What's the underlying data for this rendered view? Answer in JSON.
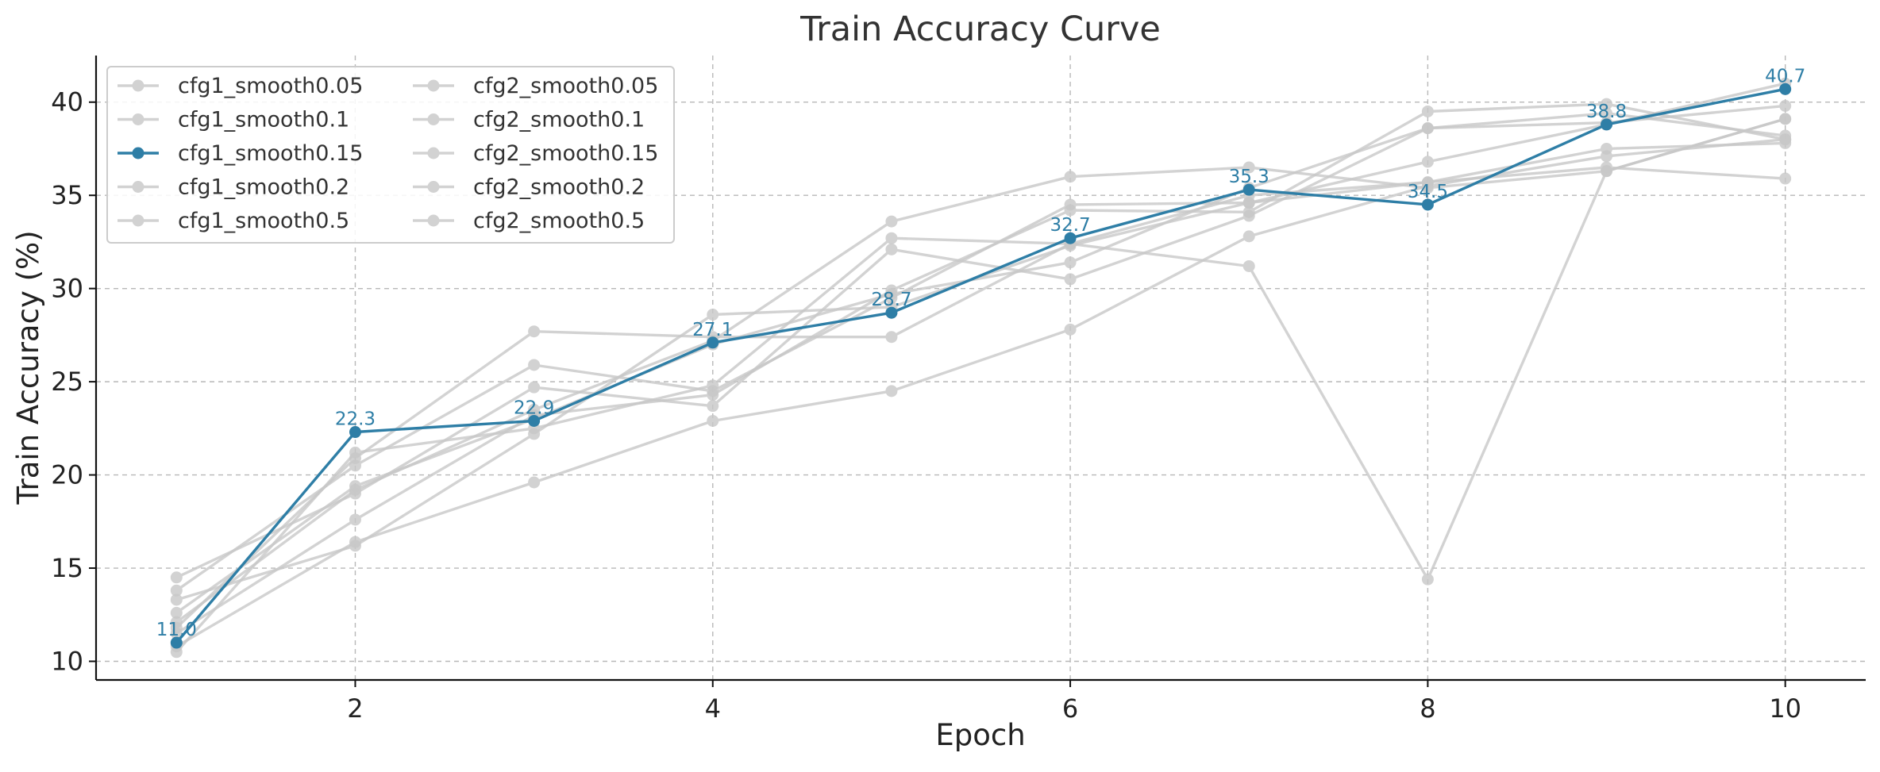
{
  "chart_data": {
    "type": "line",
    "title": "Train Accuracy Curve",
    "xlabel": "Epoch",
    "ylabel": "Train Accuracy (%)",
    "x": [
      1,
      2,
      3,
      4,
      5,
      6,
      7,
      8,
      9,
      10
    ],
    "xlim": [
      0.55,
      10.45
    ],
    "ylim": [
      9.0,
      42.5
    ],
    "xticks": [
      2,
      4,
      6,
      8,
      10
    ],
    "yticks": [
      10,
      15,
      20,
      25,
      30,
      35,
      40
    ],
    "grid": true,
    "legend_position": "top-left",
    "legend_columns": 2,
    "highlight_color": "#2e7ea6",
    "muted_color": "#c8c8c8",
    "series": [
      {
        "name": "cfg1_smooth0.05",
        "values": [
          14.5,
          19.0,
          24.7,
          23.7,
          32.1,
          30.5,
          33.9,
          38.6,
          39.4,
          38.2
        ],
        "highlight": false
      },
      {
        "name": "cfg1_smooth0.1",
        "values": [
          13.3,
          16.2,
          22.2,
          28.6,
          29.0,
          32.3,
          34.6,
          36.8,
          38.8,
          41.0
        ],
        "highlight": false
      },
      {
        "name": "cfg1_smooth0.15",
        "values": [
          11.0,
          22.3,
          22.9,
          27.1,
          28.7,
          32.7,
          35.3,
          34.5,
          38.8,
          40.7
        ],
        "highlight": true
      },
      {
        "name": "cfg1_smooth0.2",
        "values": [
          12.1,
          19.2,
          23.5,
          27.2,
          33.6,
          36.0,
          36.5,
          35.4,
          36.3,
          39.1
        ],
        "highlight": false
      },
      {
        "name": "cfg1_smooth0.5",
        "values": [
          11.5,
          17.6,
          23.2,
          24.3,
          29.9,
          34.2,
          34.1,
          39.5,
          39.9,
          38.0
        ],
        "highlight": false
      },
      {
        "name": "cfg2_smooth0.05",
        "values": [
          11.8,
          20.9,
          27.7,
          27.4,
          27.4,
          32.4,
          35.0,
          35.7,
          37.5,
          37.8
        ],
        "highlight": false
      },
      {
        "name": "cfg2_smooth0.1",
        "values": [
          10.5,
          21.2,
          22.5,
          24.8,
          32.7,
          32.4,
          31.2,
          14.4,
          36.3,
          39.1
        ],
        "highlight": false
      },
      {
        "name": "cfg2_smooth0.15",
        "values": [
          13.8,
          20.5,
          25.9,
          24.5,
          29.5,
          34.5,
          34.6,
          35.7,
          36.5,
          35.9
        ],
        "highlight": false
      },
      {
        "name": "cfg2_smooth0.2",
        "values": [
          10.8,
          16.4,
          19.6,
          22.9,
          24.5,
          27.8,
          32.8,
          35.5,
          37.1,
          38.0
        ],
        "highlight": false
      },
      {
        "name": "cfg2_smooth0.5",
        "values": [
          12.6,
          19.4,
          23.0,
          27.0,
          29.7,
          31.4,
          35.4,
          38.6,
          38.9,
          39.8
        ],
        "highlight": false
      }
    ],
    "data_labels": [
      "11.0",
      "22.3",
      "22.9",
      "27.1",
      "28.7",
      "32.7",
      "35.3",
      "34.5",
      "38.8",
      "40.7"
    ]
  }
}
